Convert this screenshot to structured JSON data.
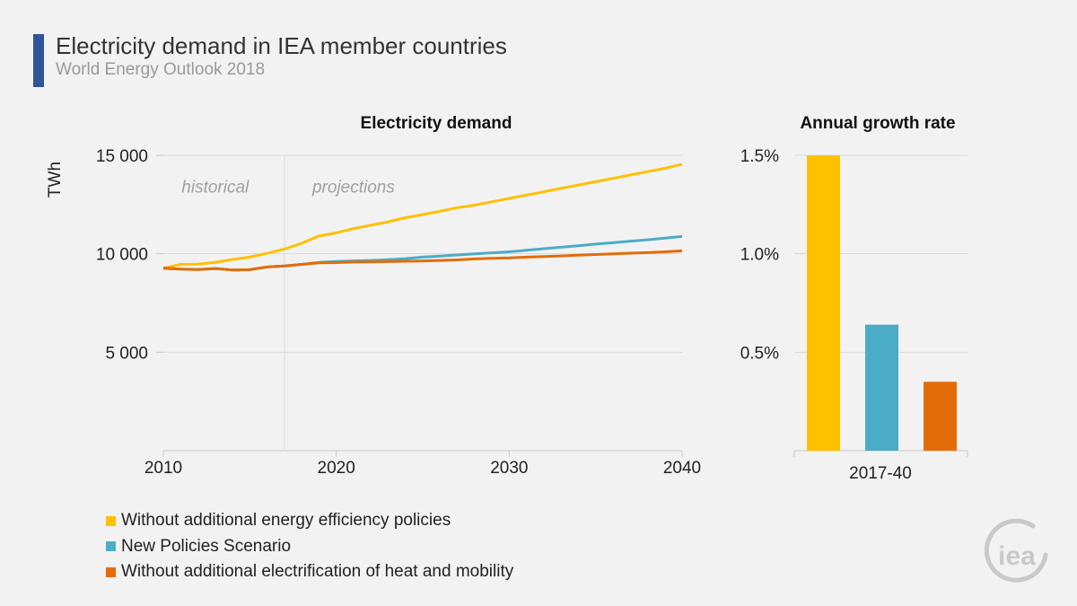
{
  "header": {
    "title": "Electricity demand in IEA member countries",
    "subtitle": "World Energy Outlook 2018"
  },
  "colors": {
    "accent": "#2f5597",
    "yellow": "#ffc000",
    "teal": "#4bacc6",
    "orange": "#e36c09",
    "axis": "#c8c8c8",
    "grid": "#d9d9d9"
  },
  "logo": {
    "text": "iea"
  },
  "legend": [
    {
      "label": "Without additional energy efficiency policies",
      "color": "#ffc000"
    },
    {
      "label": "New Policies Scenario",
      "color": "#4bacc6"
    },
    {
      "label": "Without additional electrification of heat and mobility",
      "color": "#e36c09"
    }
  ],
  "chart_data": [
    {
      "type": "line",
      "title": "Electricity demand",
      "ylabel": "TWh",
      "xlabel": "",
      "xlim": [
        2010,
        2040
      ],
      "ylim": [
        0,
        15000
      ],
      "xticks": [
        2010,
        2020,
        2030,
        2040
      ],
      "xtick_labels": [
        "2010",
        "2020",
        "2030",
        "2040"
      ],
      "yticks": [
        5000,
        10000,
        15000
      ],
      "ytick_labels": [
        "5 000",
        "10 000",
        "15 000"
      ],
      "grid": true,
      "divider_x": 2017,
      "annotations": [
        {
          "text": "historical",
          "x": 2013,
          "y": 13100
        },
        {
          "text": "projections",
          "x": 2021,
          "y": 13100
        }
      ],
      "x": [
        2010,
        2011,
        2012,
        2013,
        2014,
        2015,
        2016,
        2017,
        2018,
        2019,
        2020,
        2021,
        2022,
        2023,
        2024,
        2025,
        2026,
        2027,
        2028,
        2029,
        2030,
        2031,
        2032,
        2033,
        2034,
        2035,
        2036,
        2037,
        2038,
        2039,
        2040
      ],
      "series": [
        {
          "name": "Without additional energy efficiency policies",
          "color": "#ffc000",
          "values": [
            9270,
            9460,
            9470,
            9560,
            9710,
            9830,
            10020,
            10240,
            10530,
            10900,
            11060,
            11280,
            11450,
            11620,
            11830,
            11990,
            12160,
            12340,
            12470,
            12640,
            12810,
            12980,
            13150,
            13320,
            13490,
            13660,
            13830,
            14000,
            14170,
            14340,
            14550
          ]
        },
        {
          "name": "New Policies Scenario",
          "color": "#4bacc6",
          "values": [
            9270,
            9220,
            9200,
            9250,
            9180,
            9190,
            9330,
            9380,
            9460,
            9560,
            9610,
            9640,
            9660,
            9700,
            9750,
            9830,
            9880,
            9940,
            10000,
            10050,
            10100,
            10180,
            10260,
            10330,
            10410,
            10490,
            10560,
            10640,
            10710,
            10790,
            10880
          ]
        },
        {
          "name": "Without additional electrification of heat and mobility",
          "color": "#e36c09",
          "values": [
            9270,
            9220,
            9200,
            9250,
            9180,
            9190,
            9330,
            9380,
            9460,
            9540,
            9550,
            9580,
            9590,
            9600,
            9620,
            9640,
            9660,
            9690,
            9740,
            9770,
            9790,
            9830,
            9860,
            9890,
            9930,
            9960,
            10000,
            10030,
            10060,
            10100,
            10150
          ]
        }
      ]
    },
    {
      "type": "bar",
      "title": "Annual growth rate",
      "categories": [
        "2017-40"
      ],
      "ylim": [
        0,
        1.5
      ],
      "yticks": [
        0.5,
        1.0,
        1.5
      ],
      "ytick_labels": [
        "0.5%",
        "1.0%",
        "1.5%"
      ],
      "grid": true,
      "series": [
        {
          "name": "Without additional energy efficiency policies",
          "color": "#ffc000",
          "values": [
            1.5
          ]
        },
        {
          "name": "New Policies Scenario",
          "color": "#4bacc6",
          "values": [
            0.64
          ]
        },
        {
          "name": "Without additional electrification of heat and mobility",
          "color": "#e36c09",
          "values": [
            0.35
          ]
        }
      ]
    }
  ]
}
